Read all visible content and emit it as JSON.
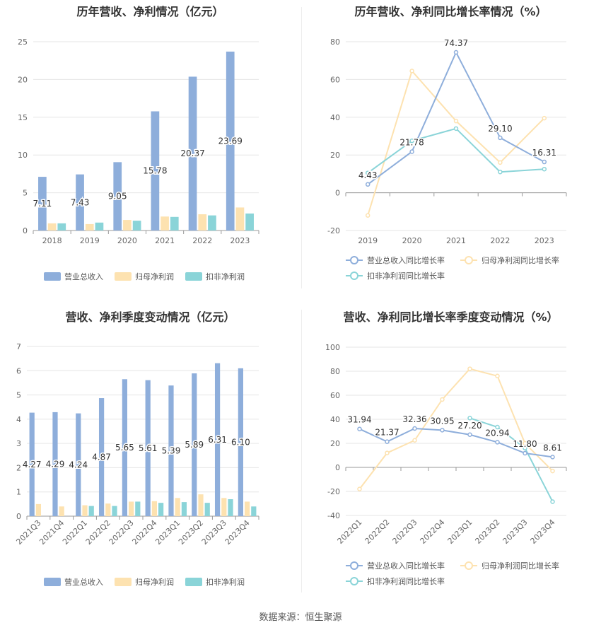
{
  "source": "数据来源：恒生聚源",
  "colors": {
    "blue": "#8eaedb",
    "orange": "#fde2b0",
    "teal": "#8ad4d8"
  },
  "chart_data": [
    {
      "type": "bar",
      "title": "历年营收、净利情况（亿元）",
      "categories": [
        "2018",
        "2019",
        "2020",
        "2021",
        "2022",
        "2023"
      ],
      "ylim": [
        0,
        25
      ],
      "yticks": [
        0,
        5,
        10,
        15,
        20,
        25
      ],
      "series": [
        {
          "name": "营业总收入",
          "values": [
            7.11,
            7.43,
            9.05,
            15.78,
            20.37,
            23.69
          ],
          "labels": [
            "7.11",
            "7.43",
            "9.05",
            "15.78",
            "20.37",
            "23.69"
          ]
        },
        {
          "name": "归母净利润",
          "values": [
            0.95,
            0.85,
            1.4,
            1.85,
            2.15,
            3.05
          ]
        },
        {
          "name": "扣非净利润",
          "values": [
            0.95,
            1.05,
            1.3,
            1.8,
            2.0,
            2.25
          ]
        }
      ],
      "legend": "bottom"
    },
    {
      "type": "line",
      "title": "历年营收、净利同比增长率情况（%）",
      "categories": [
        "2019",
        "2020",
        "2021",
        "2022",
        "2023"
      ],
      "ylim": [
        -20,
        80
      ],
      "yticks": [
        -20,
        0,
        20,
        40,
        60,
        80
      ],
      "series": [
        {
          "name": "营业总收入同比增长率",
          "values": [
            4.43,
            21.78,
            74.37,
            29.1,
            16.31
          ],
          "labels": [
            "4.43",
            "21.78",
            "74.37",
            "29.10",
            "16.31"
          ]
        },
        {
          "name": "归母净利润同比增长率",
          "values": [
            -12,
            64.5,
            38,
            16,
            39.5
          ]
        },
        {
          "name": "扣非净利润同比增长率",
          "values": [
            10.5,
            27.5,
            34,
            11,
            12.5
          ]
        }
      ],
      "legend": "bottom"
    },
    {
      "type": "bar",
      "title": "营收、净利季度变动情况（亿元）",
      "categories": [
        "2021Q3",
        "2021Q4",
        "2022Q1",
        "2022Q2",
        "2022Q3",
        "2022Q4",
        "2023Q1",
        "2023Q2",
        "2023Q3",
        "2023Q4"
      ],
      "ylim": [
        0,
        7
      ],
      "yticks": [
        0,
        1,
        2,
        3,
        4,
        5,
        6,
        7
      ],
      "series": [
        {
          "name": "营业总收入",
          "values": [
            4.27,
            4.29,
            4.24,
            4.87,
            5.65,
            5.61,
            5.39,
            5.89,
            6.31,
            6.1
          ],
          "labels": [
            "4.27",
            "4.29",
            "4.24",
            "4.87",
            "5.65",
            "5.61",
            "5.39",
            "5.89",
            "6.31",
            "6.10"
          ]
        },
        {
          "name": "归母净利润",
          "values": [
            0.5,
            0.4,
            0.45,
            0.52,
            0.6,
            0.62,
            0.75,
            0.9,
            0.75,
            0.6
          ]
        },
        {
          "name": "扣非净利润",
          "values": [
            null,
            null,
            0.42,
            0.42,
            0.6,
            0.55,
            0.58,
            0.55,
            0.7,
            0.4
          ]
        }
      ],
      "legend": "bottom"
    },
    {
      "type": "line",
      "title": "营收、净利同比增长率季度变动情况（%）",
      "categories": [
        "2022Q1",
        "2022Q2",
        "2022Q3",
        "2022Q4",
        "2023Q1",
        "2023Q2",
        "2023Q3",
        "2023Q4"
      ],
      "ylim": [
        -40,
        100
      ],
      "yticks": [
        -40,
        -20,
        0,
        20,
        40,
        60,
        80,
        100
      ],
      "series": [
        {
          "name": "营业总收入同比增长率",
          "values": [
            31.94,
            21.37,
            32.36,
            30.95,
            27.2,
            20.94,
            11.8,
            8.61
          ],
          "labels": [
            "31.94",
            "21.37",
            "32.36",
            "30.95",
            "27.20",
            "20.94",
            "11.80",
            "8.61"
          ]
        },
        {
          "name": "归母净利润同比增长率",
          "values": [
            -18,
            12,
            22.5,
            56.5,
            82,
            76,
            20,
            -3
          ]
        },
        {
          "name": "扣非净利润同比增长率",
          "values": [
            null,
            null,
            null,
            null,
            41,
            33.5,
            16,
            -28.5
          ]
        }
      ],
      "legend": "bottom"
    }
  ]
}
